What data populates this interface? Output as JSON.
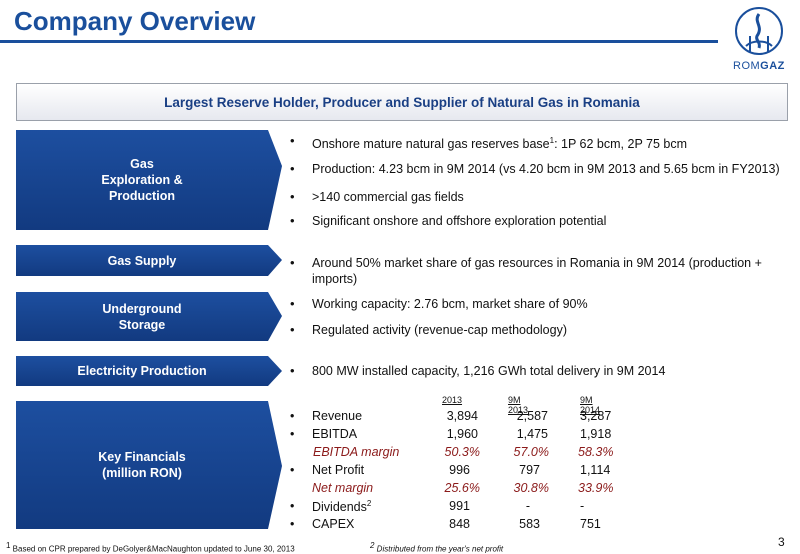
{
  "header": {
    "title": "Company Overview",
    "logo_text_rom": "ROM",
    "logo_text_gaz": "GAZ",
    "accent": "#1a4f9c"
  },
  "banner": "Largest Reserve Holder, Producer and Supplier of Natural Gas in Romania",
  "segments": [
    {
      "label": "Gas\nExploration &\nProduction"
    },
    {
      "label": "Gas Supply"
    },
    {
      "label": "Underground\nStorage"
    },
    {
      "label": "Electricity Production"
    },
    {
      "label": "Key Financials\n(million RON)"
    }
  ],
  "bullets": {
    "b1_pre": "Onshore mature natural gas reserves base",
    "b1_sup": "1",
    "b1_post": ": 1P 62 bcm, 2P 75 bcm",
    "b2": "Production: 4.23 bcm in 9M 2014 (vs 4.20 bcm in 9M 2013 and 5.65 bcm in FY2013)",
    "b3": ">140 commercial gas fields",
    "b4": "Significant onshore and offshore exploration potential",
    "b5": "Around 50% market share of gas resources in Romania in 9M 2014 (production + imports)",
    "b6": "Working capacity: 2.76 bcm, market share of 90%",
    "b7": "Regulated activity (revenue-cap methodology)",
    "b8": "800 MW installed capacity, 1,216 GWh total delivery in 9M 2014"
  },
  "financials": {
    "columns": [
      "2013",
      "9M 2013",
      "9M 2014"
    ],
    "rows": [
      {
        "label": "Revenue",
        "values": [
          "3,894",
          "2,587",
          "3,287"
        ],
        "bullet": true
      },
      {
        "label": "EBITDA",
        "values": [
          "1,960",
          "1,475",
          "1,918"
        ],
        "bullet": true
      },
      {
        "label": "EBITDA margin",
        "values": [
          "50.3%",
          "57.0%",
          "58.3%"
        ],
        "bullet": false
      },
      {
        "label": "Net Profit",
        "values": [
          "996",
          "797",
          "1,114"
        ],
        "bullet": true
      },
      {
        "label": "Net margin",
        "values": [
          "25.6%",
          "30.8%",
          "33.9%"
        ],
        "bullet": false
      },
      {
        "label": "Dividends",
        "label_sup": "2",
        "values": [
          "991",
          "-",
          "-"
        ],
        "bullet": true
      },
      {
        "label": "CAPEX",
        "values": [
          "848",
          "583",
          "751"
        ],
        "bullet": true
      }
    ]
  },
  "footer": {
    "fn1_sup": "1",
    "fn1": " Based on CPR prepared by DeGolyer&MacNaughton updated to June 30, 2013",
    "fn2_sup": "2",
    "fn2": " Distributed from the year's net profit",
    "page": "3"
  },
  "bullet_glyph": "•"
}
